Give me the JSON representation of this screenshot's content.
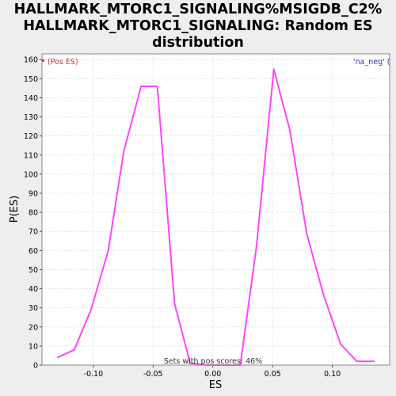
{
  "chart_data": {
    "type": "line",
    "title_lines": [
      "HALLMARK_MTORC1_SIGNALING%MSIGDB_C2%",
      "HALLMARK_MTORC1_SIGNALING: Random ES",
      "distribution"
    ],
    "xlabel": "ES",
    "ylabel": "P(ES)",
    "xlim": [
      -0.143,
      0.148
    ],
    "ylim": [
      0,
      163
    ],
    "x_ticks": [
      -0.1,
      -0.05,
      0.0,
      0.05,
      0.1
    ],
    "x_tick_labels": [
      "-0.10",
      "-0.05",
      "0.00",
      "0.05",
      "0.10"
    ],
    "y_ticks": [
      0,
      10,
      20,
      30,
      40,
      50,
      60,
      70,
      80,
      90,
      100,
      110,
      120,
      130,
      140,
      150,
      160
    ],
    "grid": true,
    "line_color": "#ff44ff",
    "series": [
      {
        "x": [
          -0.13,
          -0.116,
          -0.102,
          -0.0875,
          -0.0745,
          -0.06,
          -0.0465,
          -0.032,
          -0.019,
          -0.005,
          0.009,
          0.023,
          0.0365,
          0.051,
          0.0645,
          0.0785,
          0.0925,
          0.107,
          0.1205,
          0.135
        ],
        "values": [
          4,
          8,
          29,
          60,
          112,
          146,
          146,
          32,
          1,
          0,
          0,
          0,
          62,
          155,
          123,
          69,
          37,
          11,
          2,
          2
        ]
      }
    ],
    "legend": [
      {
        "label": "(Pos ES)",
        "color": "#dd3333",
        "position": "top-left"
      },
      {
        "label": "'na_neg' (",
        "color": "#3333dd",
        "position": "top-right"
      }
    ],
    "annotation": "Sets with pos scores: 46%"
  }
}
